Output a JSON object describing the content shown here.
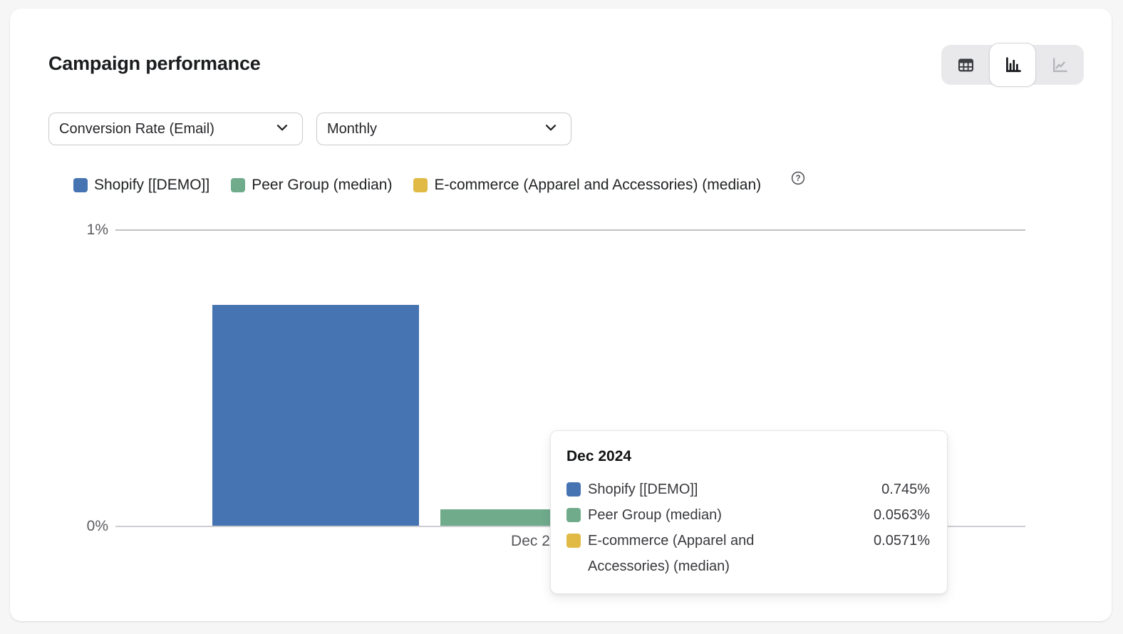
{
  "card": {
    "title": "Campaign performance"
  },
  "view_toggle": {
    "options": [
      {
        "id": "table",
        "icon": "table-view-icon",
        "active": false
      },
      {
        "id": "bar",
        "icon": "bar-chart-view-icon",
        "active": true
      },
      {
        "id": "line",
        "icon": "line-chart-view-icon",
        "active": false
      }
    ]
  },
  "filters": {
    "metric": {
      "value": "Conversion Rate (Email)"
    },
    "interval": {
      "value": "Monthly"
    }
  },
  "legend": {
    "items": [
      {
        "label": "Shopify [[DEMO]]",
        "color": "#4673b2"
      },
      {
        "label": "Peer Group (median)",
        "color": "#70ab8c"
      },
      {
        "label": "E-commerce (Apparel and Accessories) (median)",
        "color": "#e0ba45"
      }
    ]
  },
  "chart_data": {
    "type": "bar",
    "categories": [
      "Dec 2024"
    ],
    "series": [
      {
        "name": "Shopify [[DEMO]]",
        "color": "#4673b2",
        "values": [
          0.745
        ]
      },
      {
        "name": "Peer Group (median)",
        "color": "#70ab8c",
        "values": [
          0.0563
        ]
      },
      {
        "name": "E-commerce (Apparel and Accessories) (median)",
        "color": "#e0ba45",
        "values": [
          0.0571
        ]
      }
    ],
    "title": "Campaign performance",
    "xlabel": "",
    "ylabel": "Conversion Rate (Email)",
    "ylim": [
      0,
      1
    ],
    "unit": "%",
    "y_ticks": [
      "0%",
      "1%"
    ],
    "grid": "horizontal",
    "legend_position": "top"
  },
  "axis": {
    "y_top_tick": "1%",
    "y_bottom_tick": "0%",
    "x_category_label": "Dec 2024"
  },
  "tooltip": {
    "title": "Dec 2024",
    "rows": [
      {
        "label": "Shopify [[DEMO]]",
        "value": "0.745%",
        "color": "#4673b2"
      },
      {
        "label": "Peer Group (median)",
        "value": "0.0563%",
        "color": "#70ab8c"
      },
      {
        "label": "E-commerce (Apparel and Accessories) (median)",
        "value": "0.0571%",
        "color": "#e0ba45"
      }
    ]
  }
}
